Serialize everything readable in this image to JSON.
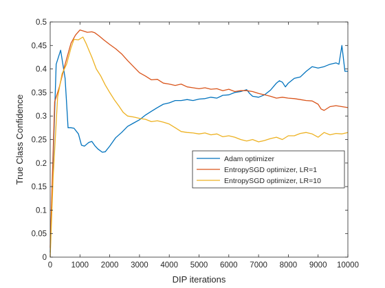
{
  "chart_data": {
    "type": "line",
    "title": "",
    "xlabel": "DIP iterations",
    "ylabel": "True Class Confidence",
    "xlim": [
      0,
      10000
    ],
    "ylim": [
      0,
      0.5
    ],
    "xticks": [
      0,
      1000,
      2000,
      3000,
      4000,
      5000,
      6000,
      7000,
      8000,
      9000,
      10000
    ],
    "yticks": [
      0,
      0.05,
      0.1,
      0.15,
      0.2,
      0.25,
      0.3,
      0.35,
      0.4,
      0.45,
      0.5
    ],
    "xtick_labels": [
      "0",
      "1000",
      "2000",
      "3000",
      "4000",
      "5000",
      "6000",
      "7000",
      "8000",
      "9000",
      "10000"
    ],
    "ytick_labels": [
      "0",
      "0.05",
      "0.1",
      "0.15",
      "0.2",
      "0.25",
      "0.3",
      "0.35",
      "0.4",
      "0.45",
      "0.5"
    ],
    "grid": false,
    "legend_position": "center-right",
    "series": [
      {
        "name": "Adam optimizer",
        "color": "#0072BD",
        "x": [
          0,
          200,
          350,
          500,
          600,
          700,
          800,
          950,
          1050,
          1150,
          1300,
          1400,
          1500,
          1600,
          1750,
          1850,
          2000,
          2200,
          2400,
          2600,
          2800,
          3000,
          3200,
          3400,
          3600,
          3800,
          4000,
          4200,
          4400,
          4600,
          4800,
          5000,
          5200,
          5400,
          5600,
          5800,
          6000,
          6200,
          6400,
          6600,
          6700,
          6800,
          7000,
          7200,
          7400,
          7600,
          7700,
          7800,
          7900,
          8000,
          8200,
          8400,
          8600,
          8800,
          9000,
          9200,
          9400,
          9600,
          9700,
          9800,
          9900,
          10000
        ],
        "values": [
          0.01,
          0.41,
          0.44,
          0.38,
          0.275,
          0.275,
          0.274,
          0.262,
          0.238,
          0.236,
          0.244,
          0.246,
          0.237,
          0.23,
          0.223,
          0.224,
          0.236,
          0.254,
          0.265,
          0.278,
          0.285,
          0.292,
          0.302,
          0.31,
          0.318,
          0.325,
          0.328,
          0.333,
          0.333,
          0.335,
          0.333,
          0.336,
          0.337,
          0.34,
          0.338,
          0.344,
          0.345,
          0.35,
          0.352,
          0.356,
          0.348,
          0.342,
          0.34,
          0.345,
          0.355,
          0.37,
          0.375,
          0.372,
          0.362,
          0.37,
          0.38,
          0.383,
          0.395,
          0.405,
          0.402,
          0.405,
          0.41,
          0.413,
          0.41,
          0.45,
          0.395,
          0.395
        ]
      },
      {
        "name": "EntropySGD optimizer, LR=1",
        "color": "#D95319",
        "x": [
          0,
          150,
          300,
          500,
          700,
          850,
          1000,
          1100,
          1250,
          1400,
          1500,
          1650,
          1800,
          2000,
          2200,
          2400,
          2600,
          2800,
          3000,
          3200,
          3400,
          3600,
          3800,
          4000,
          4200,
          4400,
          4600,
          4800,
          5000,
          5200,
          5400,
          5600,
          5800,
          6000,
          6200,
          6400,
          6600,
          6800,
          7000,
          7200,
          7400,
          7600,
          7800,
          8000,
          8200,
          8400,
          8600,
          8800,
          9000,
          9100,
          9200,
          9400,
          9600,
          9800,
          10000
        ],
        "values": [
          0.02,
          0.33,
          0.36,
          0.41,
          0.455,
          0.472,
          0.483,
          0.481,
          0.478,
          0.479,
          0.477,
          0.47,
          0.462,
          0.452,
          0.443,
          0.432,
          0.418,
          0.405,
          0.392,
          0.385,
          0.377,
          0.378,
          0.37,
          0.368,
          0.365,
          0.368,
          0.362,
          0.36,
          0.358,
          0.36,
          0.357,
          0.358,
          0.354,
          0.357,
          0.352,
          0.354,
          0.354,
          0.352,
          0.348,
          0.345,
          0.342,
          0.338,
          0.34,
          0.338,
          0.337,
          0.335,
          0.333,
          0.332,
          0.325,
          0.315,
          0.312,
          0.32,
          0.322,
          0.32,
          0.318
        ]
      },
      {
        "name": "EntropySGD optimizer, LR=10",
        "color": "#EDB120",
        "x": [
          0,
          100,
          250,
          400,
          550,
          700,
          800,
          950,
          1100,
          1200,
          1300,
          1400,
          1550,
          1700,
          1850,
          2000,
          2150,
          2300,
          2450,
          2600,
          2800,
          3000,
          3200,
          3400,
          3600,
          3800,
          4000,
          4200,
          4400,
          4600,
          4800,
          5000,
          5200,
          5400,
          5600,
          5800,
          6000,
          6200,
          6400,
          6600,
          6800,
          7000,
          7200,
          7400,
          7600,
          7800,
          8000,
          8200,
          8400,
          8600,
          8800,
          9000,
          9200,
          9400,
          9600,
          9800,
          10000
        ],
        "values": [
          0.0,
          0.17,
          0.34,
          0.39,
          0.41,
          0.445,
          0.463,
          0.462,
          0.468,
          0.455,
          0.44,
          0.425,
          0.4,
          0.385,
          0.366,
          0.35,
          0.335,
          0.322,
          0.308,
          0.3,
          0.298,
          0.295,
          0.293,
          0.288,
          0.29,
          0.287,
          0.283,
          0.275,
          0.267,
          0.265,
          0.264,
          0.262,
          0.264,
          0.26,
          0.262,
          0.256,
          0.258,
          0.255,
          0.25,
          0.247,
          0.25,
          0.245,
          0.248,
          0.252,
          0.255,
          0.25,
          0.258,
          0.258,
          0.263,
          0.265,
          0.262,
          0.255,
          0.265,
          0.26,
          0.263,
          0.262,
          0.265
        ]
      }
    ]
  }
}
